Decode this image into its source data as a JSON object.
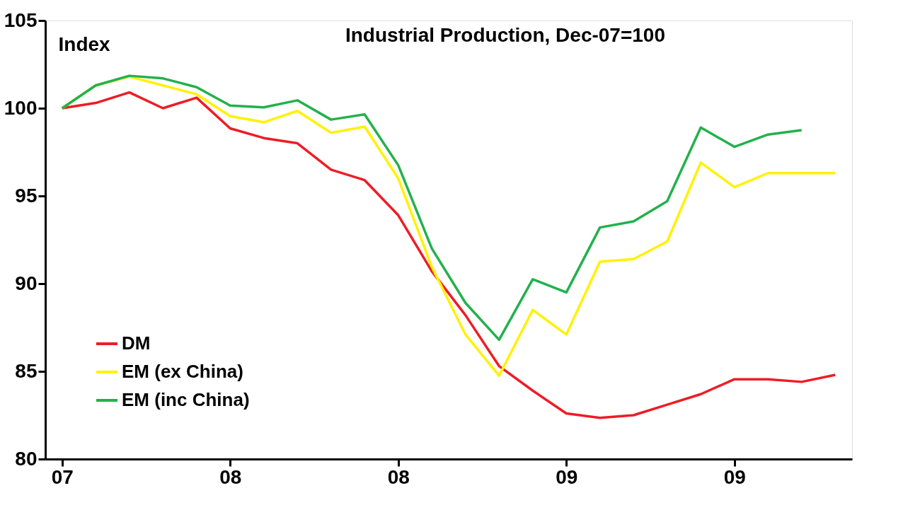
{
  "chart_data": {
    "type": "line",
    "title": "Industrial Production, Dec-07=100",
    "ylabel": "Index",
    "categories": [
      "07",
      null,
      null,
      null,
      null,
      "08",
      null,
      null,
      null,
      null,
      "08",
      null,
      null,
      null,
      null,
      "09",
      null,
      null,
      null,
      null,
      "09",
      null,
      null,
      null
    ],
    "series": [
      {
        "name": "DM",
        "color": "#ee1c25",
        "values": [
          100,
          100.3,
          100.9,
          100,
          100.6,
          98.85,
          98.3,
          98,
          96.5,
          95.9,
          93.9,
          90.7,
          88.2,
          85.3,
          83.9,
          82.6,
          82.35,
          82.5,
          83.1,
          83.7,
          84.55,
          84.55,
          84.4,
          84.8
        ]
      },
      {
        "name": "EM (ex China)",
        "color": "#fff200",
        "values": [
          100,
          101.3,
          101.8,
          101.3,
          100.8,
          99.55,
          99.2,
          99.85,
          98.6,
          98.95,
          96,
          90.95,
          87.1,
          84.75,
          88.5,
          87.1,
          91.25,
          91.4,
          92.4,
          96.9,
          95.5,
          96.3,
          96.3,
          96.3
        ]
      },
      {
        "name": "EM (inc China)",
        "color": "#22b14c",
        "values": [
          100,
          101.3,
          101.85,
          101.7,
          101.2,
          100.15,
          100.05,
          100.45,
          99.35,
          99.65,
          96.75,
          92,
          88.9,
          86.8,
          90.25,
          89.5,
          93.2,
          93.55,
          94.7,
          98.9,
          97.8,
          98.5,
          98.75,
          null
        ]
      }
    ],
    "ylim": [
      80,
      105
    ],
    "yticks": [
      80,
      85,
      90,
      95,
      100,
      105
    ],
    "grid": false,
    "legend": "bottom left",
    "marker": "none",
    "line_style": "solid"
  }
}
